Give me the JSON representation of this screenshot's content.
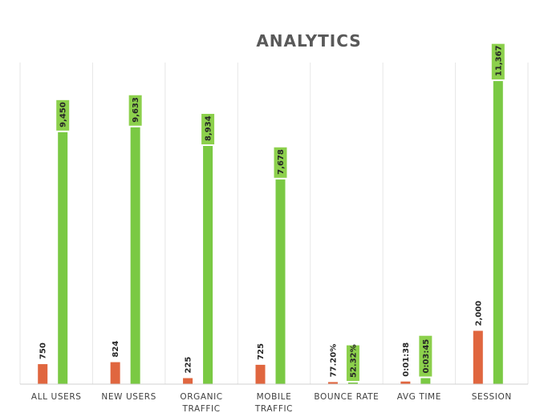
{
  "chart_data": {
    "type": "bar",
    "title": "ANALYTICS",
    "categories": [
      [
        "ALL USERS"
      ],
      [
        "NEW USERS"
      ],
      [
        "ORGANIC",
        "TRAFFIC"
      ],
      [
        "MOBILE",
        "TRAFFIC"
      ],
      [
        "BOUNCE RATE"
      ],
      [
        "AVG TIME"
      ],
      [
        "SESSION"
      ]
    ],
    "series": [
      {
        "color": "#e0663f",
        "values": [
          750,
          824,
          225,
          725,
          77.2,
          98,
          2000
        ],
        "labels": [
          "750",
          "824",
          "225",
          "725",
          "77.20%",
          "0:01:38",
          "2,000"
        ]
      },
      {
        "color": "#7ac943",
        "values": [
          9450,
          9633,
          8934,
          7678,
          52.32,
          225,
          11367
        ],
        "labels": [
          "9,450",
          "9,633",
          "8,934",
          "7,678",
          "52.32%",
          "0:03:45",
          "11,367"
        ]
      }
    ],
    "ylim": [
      0,
      11400
    ],
    "grid": "vertical category separators",
    "legend": "none"
  }
}
